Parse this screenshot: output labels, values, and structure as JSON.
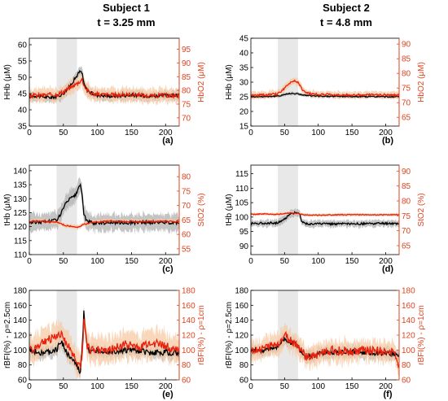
{
  "headers": [
    {
      "subject": "Subject 1",
      "t": "t = 3.25 mm"
    },
    {
      "subject": "Subject 2",
      "t": "t = 4.8 mm"
    }
  ],
  "chart_data": [
    {
      "type": "line",
      "panel_tag": "(a)",
      "shade": [
        40,
        70
      ],
      "xlim": [
        0,
        220
      ],
      "xticks": [
        "0",
        "50",
        "100",
        "150",
        "200"
      ],
      "left": {
        "label": "HHb (μM)",
        "ylim": [
          35,
          62
        ],
        "ticks": [
          "35",
          "40",
          "45",
          "50",
          "55",
          "60"
        ]
      },
      "right": {
        "label": "HbO2 (μM)",
        "ylim": [
          67,
          99
        ],
        "ticks": [
          "70",
          "75",
          "80",
          "85",
          "90",
          "95"
        ]
      },
      "series": [
        {
          "axis": "left",
          "color": "#000000",
          "band_color": "#b0b0b0",
          "band": 1.5,
          "noise": 0.5,
          "x": [
            0,
            10,
            20,
            30,
            40,
            50,
            60,
            65,
            70,
            73,
            75,
            78,
            80,
            85,
            90,
            100,
            120,
            150,
            180,
            200,
            220
          ],
          "y": [
            44,
            44.3,
            44,
            43.8,
            44,
            45,
            47.5,
            49,
            50.5,
            51.5,
            51.8,
            51,
            48,
            46,
            45.2,
            44.5,
            44.2,
            44.5,
            44.2,
            44.4,
            44.5
          ]
        },
        {
          "axis": "right",
          "color": "#e8200c",
          "band_color": "#f6c9a4",
          "band": 2.5,
          "noise": 0.8,
          "x": [
            0,
            20,
            40,
            50,
            60,
            70,
            75,
            78,
            80,
            85,
            90,
            100,
            120,
            150,
            180,
            200,
            220
          ],
          "y": [
            78,
            78.3,
            78.5,
            79.5,
            81,
            82.5,
            83.5,
            84,
            82,
            80,
            79,
            78.5,
            78.3,
            78.5,
            78,
            78.2,
            78
          ]
        }
      ]
    },
    {
      "type": "line",
      "panel_tag": "(b)",
      "shade": [
        40,
        70
      ],
      "xlim": [
        0,
        220
      ],
      "xticks": [
        "0",
        "50",
        "100",
        "150",
        "200"
      ],
      "left": {
        "label": "HHb (μM)",
        "ylim": [
          15,
          45
        ],
        "ticks": [
          "15",
          "20",
          "25",
          "30",
          "35",
          "40",
          "45"
        ]
      },
      "right": {
        "label": "HbO2 (μM)",
        "ylim": [
          62,
          92
        ],
        "ticks": [
          "65",
          "70",
          "75",
          "80",
          "85",
          "90"
        ]
      },
      "series": [
        {
          "axis": "left",
          "color": "#000000",
          "band_color": "#b0b0b0",
          "band": 0.6,
          "noise": 0.2,
          "x": [
            0,
            20,
            40,
            50,
            60,
            70,
            80,
            100,
            150,
            220
          ],
          "y": [
            25,
            25.1,
            25.2,
            25.8,
            26.2,
            26,
            25.5,
            25.2,
            25.1,
            25
          ]
        },
        {
          "axis": "right",
          "color": "#e8200c",
          "band_color": "#f6c9a4",
          "band": 1.2,
          "noise": 0.35,
          "x": [
            0,
            20,
            40,
            48,
            55,
            60,
            65,
            70,
            75,
            80,
            90,
            100,
            150,
            200,
            220
          ],
          "y": [
            72.5,
            72.6,
            73,
            74.5,
            76,
            77.2,
            77.5,
            77,
            75,
            73.5,
            73,
            72.8,
            72.6,
            72.7,
            72.5
          ]
        }
      ]
    },
    {
      "type": "line",
      "panel_tag": "(c)",
      "shade": [
        40,
        70
      ],
      "xlim": [
        0,
        220
      ],
      "xticks": [
        "0",
        "50",
        "100",
        "150",
        "200"
      ],
      "left": {
        "label": "tHb (μM)",
        "ylim": [
          110,
          142
        ],
        "ticks": [
          "110",
          "115",
          "120",
          "125",
          "130",
          "135",
          "140"
        ]
      },
      "right": {
        "label": "StO2 (%)",
        "ylim": [
          53,
          84
        ],
        "ticks": [
          "55",
          "60",
          "65",
          "70",
          "75",
          "80"
        ]
      },
      "series": [
        {
          "axis": "left",
          "color": "#000000",
          "band_color": "#b0b0b0",
          "band": 3,
          "noise": 0.6,
          "x": [
            0,
            20,
            30,
            40,
            45,
            50,
            55,
            60,
            65,
            70,
            73,
            75,
            78,
            80,
            85,
            90,
            100,
            120,
            150,
            180,
            220
          ],
          "y": [
            121.5,
            121.7,
            122,
            122.5,
            124,
            126.5,
            129,
            130,
            130.5,
            132,
            134,
            135,
            131,
            124,
            122,
            121.5,
            121.2,
            121.5,
            121.4,
            121.5,
            121.5
          ]
        },
        {
          "axis": "right",
          "color": "#e8200c",
          "band_color": "#f6c9a4",
          "band": 0.8,
          "noise": 0.25,
          "x": [
            0,
            20,
            40,
            50,
            60,
            70,
            75,
            80,
            90,
            100,
            120,
            150,
            200,
            220
          ],
          "y": [
            64.5,
            64.6,
            64.2,
            63.3,
            62.8,
            62.5,
            62.8,
            63.5,
            64,
            64.3,
            64.6,
            64.4,
            64.5,
            64.4
          ]
        }
      ]
    },
    {
      "type": "line",
      "panel_tag": "(d)",
      "shade": [
        40,
        70
      ],
      "xlim": [
        0,
        220
      ],
      "xticks": [
        "0",
        "50",
        "100",
        "150",
        "200"
      ],
      "left": {
        "label": "tHb (μM)",
        "ylim": [
          87,
          118
        ],
        "ticks": [
          "90",
          "95",
          "100",
          "105",
          "110",
          "115"
        ]
      },
      "right": {
        "label": "StO2 (%)",
        "ylim": [
          62,
          92
        ],
        "ticks": [
          "65",
          "70",
          "75",
          "80",
          "85",
          "90"
        ]
      },
      "series": [
        {
          "axis": "left",
          "color": "#000000",
          "band_color": "#b0b0b0",
          "band": 1.2,
          "noise": 0.35,
          "x": [
            0,
            20,
            40,
            50,
            55,
            60,
            65,
            70,
            73,
            75,
            80,
            90,
            100,
            150,
            200,
            220
          ],
          "y": [
            97.8,
            97.9,
            98,
            99.2,
            100.5,
            101.2,
            101.5,
            101.6,
            100.8,
            98.5,
            97.8,
            97.6,
            97.7,
            97.6,
            97.8,
            97.7
          ]
        },
        {
          "axis": "right",
          "color": "#e8200c",
          "band_color": "#f6c9a4",
          "band": 0.5,
          "noise": 0.15,
          "x": [
            0,
            20,
            40,
            50,
            60,
            70,
            80,
            100,
            150,
            200,
            220
          ],
          "y": [
            75.5,
            75.6,
            75.5,
            75.8,
            76,
            75.8,
            75.3,
            75.2,
            75.4,
            75.3,
            75.4
          ]
        }
      ]
    },
    {
      "type": "line",
      "panel_tag": "(e)",
      "shade": [
        40,
        70
      ],
      "xlim": [
        0,
        220
      ],
      "xticks": [
        "0",
        "50",
        "100",
        "150",
        "200"
      ],
      "left": {
        "label": "rBFI(%) - ρ=2.5cm",
        "ylim": [
          60,
          180
        ],
        "ticks": [
          "60",
          "80",
          "100",
          "120",
          "140",
          "160",
          "180"
        ]
      },
      "right": {
        "label": "rBFI(%) - ρ=1cm",
        "ylim": [
          60,
          180
        ],
        "ticks": [
          "60",
          "80",
          "100",
          "120",
          "140",
          "160",
          "180"
        ]
      },
      "series": [
        {
          "axis": "left",
          "color": "#000000",
          "band_color": "#b0b0b0",
          "band": 8,
          "noise": 4,
          "x": [
            0,
            10,
            20,
            30,
            40,
            45,
            50,
            55,
            60,
            65,
            70,
            73,
            75,
            78,
            80,
            82,
            85,
            88,
            90,
            95,
            100,
            120,
            150,
            180,
            200,
            220
          ],
          "y": [
            100,
            98,
            96,
            97,
            100,
            110,
            108,
            95,
            90,
            85,
            78,
            72,
            70,
            110,
            152,
            130,
            105,
            98,
            95,
            98,
            100,
            98,
            100,
            96,
            97,
            95
          ]
        },
        {
          "axis": "right",
          "color": "#e8200c",
          "band_color": "#f6c9a4",
          "band": 18,
          "noise": 6,
          "x": [
            0,
            10,
            20,
            30,
            40,
            45,
            50,
            55,
            60,
            65,
            70,
            73,
            75,
            78,
            80,
            82,
            85,
            90,
            100,
            120,
            140,
            150,
            160,
            180,
            200,
            220
          ],
          "y": [
            100,
            103,
            110,
            115,
            118,
            122,
            118,
            108,
            100,
            92,
            85,
            80,
            78,
            100,
            140,
            125,
            105,
            100,
            102,
            100,
            108,
            105,
            104,
            110,
            105,
            100
          ]
        }
      ]
    },
    {
      "type": "line",
      "panel_tag": "(f)",
      "shade": [
        40,
        70
      ],
      "xlim": [
        0,
        220
      ],
      "xticks": [
        "0",
        "50",
        "100",
        "150",
        "200"
      ],
      "left": {
        "label": "rBFI(%) - ρ=2.5cm",
        "ylim": [
          60,
          180
        ],
        "ticks": [
          "60",
          "80",
          "100",
          "120",
          "140",
          "160",
          "180"
        ]
      },
      "right": {
        "label": "rBFI(%) - ρ=1cm",
        "ylim": [
          60,
          180
        ],
        "ticks": [
          "60",
          "80",
          "100",
          "120",
          "140",
          "160",
          "180"
        ]
      },
      "series": [
        {
          "axis": "left",
          "color": "#000000",
          "band_color": "#b0b0b0",
          "band": 8,
          "noise": 3,
          "x": [
            0,
            20,
            40,
            45,
            50,
            55,
            60,
            65,
            70,
            75,
            80,
            90,
            100,
            120,
            150,
            180,
            200,
            210,
            220
          ],
          "y": [
            100,
            100,
            105,
            110,
            115,
            112,
            110,
            108,
            105,
            98,
            92,
            92,
            95,
            97,
            98,
            96,
            95,
            95,
            94
          ]
        },
        {
          "axis": "right",
          "color": "#e8200c",
          "band_color": "#f6c9a4",
          "band": 14,
          "noise": 6,
          "x": [
            0,
            20,
            40,
            45,
            50,
            55,
            60,
            65,
            70,
            75,
            80,
            90,
            100,
            120,
            150,
            180,
            200,
            210,
            215,
            220
          ],
          "y": [
            100,
            102,
            108,
            112,
            120,
            115,
            112,
            110,
            105,
            100,
            92,
            90,
            95,
            100,
            98,
            100,
            97,
            96,
            94,
            75
          ]
        }
      ]
    }
  ]
}
